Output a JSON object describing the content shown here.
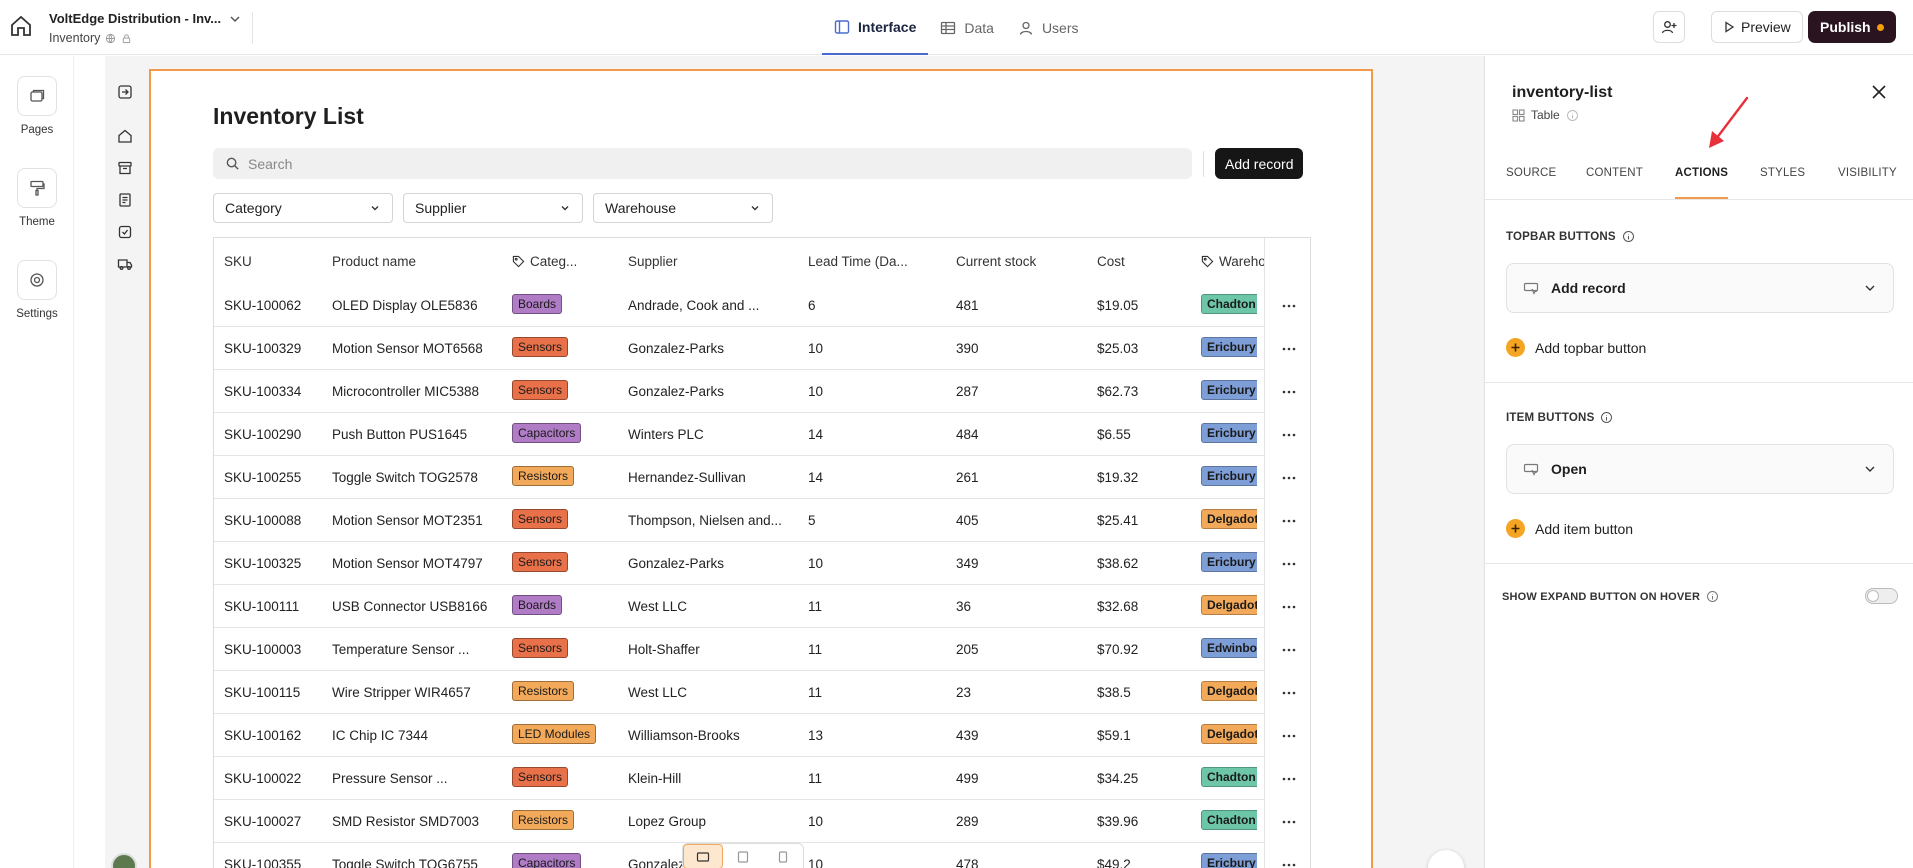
{
  "app": {
    "title": "VoltEdge Distribution - Inv...",
    "subtitle": "Inventory",
    "tabs": [
      {
        "label": "Interface",
        "icon": "layout-icon",
        "active": true
      },
      {
        "label": "Data",
        "icon": "table-icon",
        "active": false
      },
      {
        "label": "Users",
        "icon": "user-icon",
        "active": false
      }
    ],
    "preview_label": "Preview",
    "publish_label": "Publish",
    "accent": "#f19a4a",
    "publish_bg": "#2a1420"
  },
  "rail": {
    "items": [
      {
        "label": "Pages",
        "icon": "pages-icon"
      },
      {
        "label": "Theme",
        "icon": "paint-roller-icon"
      },
      {
        "label": "Settings",
        "icon": "gear-icon"
      }
    ]
  },
  "page": {
    "title": "Inventory List",
    "search_placeholder": "Search",
    "add_record_label": "Add record",
    "filters": [
      "Category",
      "Supplier",
      "Warehouse"
    ]
  },
  "table": {
    "headers": [
      "SKU",
      "Product name",
      "Categ...",
      "Supplier",
      "Lead Time (Da...",
      "Current stock",
      "Cost",
      "Wareho..."
    ],
    "rows": [
      {
        "sku": "SKU-100062",
        "name": "OLED Display OLE5836",
        "category": "Boards",
        "supplier": "Andrade, Cook and ...",
        "lead": "6",
        "stock": "481",
        "cost": "$19.05",
        "warehouse": "Chadton"
      },
      {
        "sku": "SKU-100329",
        "name": "Motion Sensor MOT6568",
        "category": "Sensors",
        "supplier": "Gonzalez-Parks",
        "lead": "10",
        "stock": "390",
        "cost": "$25.03",
        "warehouse": "Ericbury"
      },
      {
        "sku": "SKU-100334",
        "name": "Microcontroller MIC5388",
        "category": "Sensors",
        "supplier": "Gonzalez-Parks",
        "lead": "10",
        "stock": "287",
        "cost": "$62.73",
        "warehouse": "Ericbury"
      },
      {
        "sku": "SKU-100290",
        "name": "Push Button PUS1645",
        "category": "Capacitors",
        "supplier": "Winters PLC",
        "lead": "14",
        "stock": "484",
        "cost": "$6.55",
        "warehouse": "Ericbury"
      },
      {
        "sku": "SKU-100255",
        "name": "Toggle Switch TOG2578",
        "category": "Resistors",
        "supplier": "Hernandez-Sullivan",
        "lead": "14",
        "stock": "261",
        "cost": "$19.32",
        "warehouse": "Ericbury"
      },
      {
        "sku": "SKU-100088",
        "name": "Motion Sensor MOT2351",
        "category": "Sensors",
        "supplier": "Thompson, Nielsen and...",
        "lead": "5",
        "stock": "405",
        "cost": "$25.41",
        "warehouse": "Delgadotown"
      },
      {
        "sku": "SKU-100325",
        "name": "Motion Sensor MOT4797",
        "category": "Sensors",
        "supplier": "Gonzalez-Parks",
        "lead": "10",
        "stock": "349",
        "cost": "$38.62",
        "warehouse": "Ericbury"
      },
      {
        "sku": "SKU-100111",
        "name": "USB Connector USB8166",
        "category": "Boards",
        "supplier": "West LLC",
        "lead": "11",
        "stock": "36",
        "cost": "$32.68",
        "warehouse": "Delgadotown"
      },
      {
        "sku": "SKU-100003",
        "name": "Temperature Sensor ...",
        "category": "Sensors",
        "supplier": "Holt-Shaffer",
        "lead": "11",
        "stock": "205",
        "cost": "$70.92",
        "warehouse": "Edwinborough"
      },
      {
        "sku": "SKU-100115",
        "name": "Wire Stripper WIR4657",
        "category": "Resistors",
        "supplier": "West LLC",
        "lead": "11",
        "stock": "23",
        "cost": "$38.5",
        "warehouse": "Delgadotown"
      },
      {
        "sku": "SKU-100162",
        "name": "IC Chip IC 7344",
        "category": "LED Modules",
        "supplier": "Williamson-Brooks",
        "lead": "13",
        "stock": "439",
        "cost": "$59.1",
        "warehouse": "Delgadotown"
      },
      {
        "sku": "SKU-100022",
        "name": "Pressure Sensor ...",
        "category": "Sensors",
        "supplier": "Klein-Hill",
        "lead": "11",
        "stock": "499",
        "cost": "$34.25",
        "warehouse": "Chadton"
      },
      {
        "sku": "SKU-100027",
        "name": "SMD Resistor SMD7003",
        "category": "Resistors",
        "supplier": "Lopez Group",
        "lead": "10",
        "stock": "289",
        "cost": "$39.96",
        "warehouse": "Chadton"
      },
      {
        "sku": "SKU-100355",
        "name": "Toggle Switch TOG6755",
        "category": "Capacitors",
        "supplier": "Gonzalez",
        "lead": "10",
        "stock": "478",
        "cost": "$49.2",
        "warehouse": "Ericbury"
      }
    ],
    "category_colors": {
      "Boards": "#b07cc6",
      "Sensors": "#e8714a",
      "Capacitors": "#b07cc6",
      "Resistors": "#f3a95a",
      "LED Modules": "#f3a95a"
    },
    "warehouse_colors": {
      "Chadton": "#6dc6a8",
      "Ericbury": "#7d9ed6",
      "Delgadotown": "#f3a95a",
      "Edwinborough": "#7d9ed6"
    }
  },
  "panel": {
    "title": "inventory-list",
    "subtitle": "Table",
    "tabs": [
      "SOURCE",
      "CONTENT",
      "ACTIONS",
      "STYLES",
      "VISIBILITY"
    ],
    "active_tab": "ACTIONS",
    "topbar_label": "TOPBAR BUTTONS",
    "topbar_button": "Add record",
    "add_topbar": "Add topbar button",
    "item_label": "ITEM BUTTONS",
    "item_button": "Open",
    "add_item": "Add item button",
    "expand_label": "SHOW EXPAND BUTTON ON HOVER",
    "expand_on": false
  }
}
